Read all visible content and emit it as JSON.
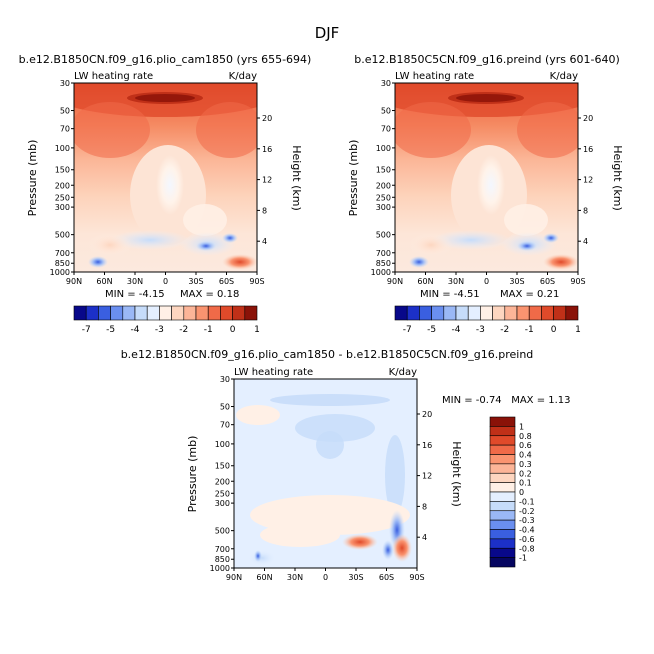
{
  "figure_title": "DJF",
  "chart_data": [
    {
      "type": "heatmap",
      "title": "b.e12.B1850CN.f09_g16.plio_cam1850 (yrs 655-694)",
      "left_label": "LW heating rate",
      "right_label": "K/day",
      "ylabel": "Pressure (mb)",
      "ylabel_right": "Height (km)",
      "x_ticks": [
        "90N",
        "60N",
        "30N",
        "0",
        "30S",
        "60S",
        "90S"
      ],
      "y_ticks": [
        "30",
        "50",
        "70",
        "100",
        "150",
        "200",
        "250",
        "300",
        "500",
        "700",
        "850",
        "1000"
      ],
      "height_ticks": [
        "20",
        "16",
        "12",
        "8",
        "4"
      ],
      "min_text": "MIN = -4.15",
      "max_text": "MAX = 0.18"
    },
    {
      "type": "heatmap",
      "title": "b.e12.B1850C5CN.f09_g16.preind (yrs 601-640)",
      "left_label": "LW heating rate",
      "right_label": "K/day",
      "ylabel": "Pressure (mb)",
      "ylabel_right": "Height (km)",
      "x_ticks": [
        "90N",
        "60N",
        "30N",
        "0",
        "30S",
        "60S",
        "90S"
      ],
      "y_ticks": [
        "30",
        "50",
        "70",
        "100",
        "150",
        "200",
        "250",
        "300",
        "500",
        "700",
        "850",
        "1000"
      ],
      "height_ticks": [
        "20",
        "16",
        "12",
        "8",
        "4"
      ],
      "min_text": "MIN = -4.51",
      "max_text": "MAX = 0.21"
    },
    {
      "type": "heatmap",
      "title": "b.e12.B1850CN.f09_g16.plio_cam1850 - b.e12.B1850C5CN.f09_g16.preind",
      "left_label": "LW heating rate",
      "right_label": "K/day",
      "ylabel": "Pressure (mb)",
      "ylabel_right": "Height (km)",
      "x_ticks": [
        "90N",
        "60N",
        "30N",
        "0",
        "30S",
        "60S",
        "90S"
      ],
      "y_ticks": [
        "30",
        "50",
        "70",
        "100",
        "150",
        "200",
        "250",
        "300",
        "500",
        "700",
        "850",
        "1000"
      ],
      "height_ticks": [
        "20",
        "16",
        "12",
        "8",
        "4"
      ],
      "minmax_text": "MIN = -0.74   MAX = 1.13"
    }
  ],
  "colorbar_top": {
    "labels": [
      "-7",
      "-5",
      "-4",
      "-3",
      "-2",
      "-1",
      "0",
      "1"
    ],
    "colors": [
      "#08088a",
      "#1c30c8",
      "#3a5fe0",
      "#6a8ff0",
      "#9ab8f6",
      "#c6dcfa",
      "#e4efff",
      "#fff0e6",
      "#fdd6c0",
      "#fcb598",
      "#fa9470",
      "#f06a48",
      "#e04a2a",
      "#c03018",
      "#8a1208"
    ]
  },
  "colorbar_diff": {
    "labels": [
      "1",
      "0.8",
      "0.6",
      "0.4",
      "0.3",
      "0.2",
      "0.1",
      "0",
      "-0.1",
      "-0.2",
      "-0.3",
      "-0.4",
      "-0.6",
      "-0.8",
      "-1"
    ],
    "colors": [
      "#8a1208",
      "#c03018",
      "#e04a2a",
      "#f06a48",
      "#fa9470",
      "#fcb598",
      "#fdd6c0",
      "#fff0e6",
      "#e4efff",
      "#c6dcfa",
      "#9ab8f6",
      "#6a8ff0",
      "#3a5fe0",
      "#1c30c8",
      "#08088a",
      "#060660"
    ]
  }
}
